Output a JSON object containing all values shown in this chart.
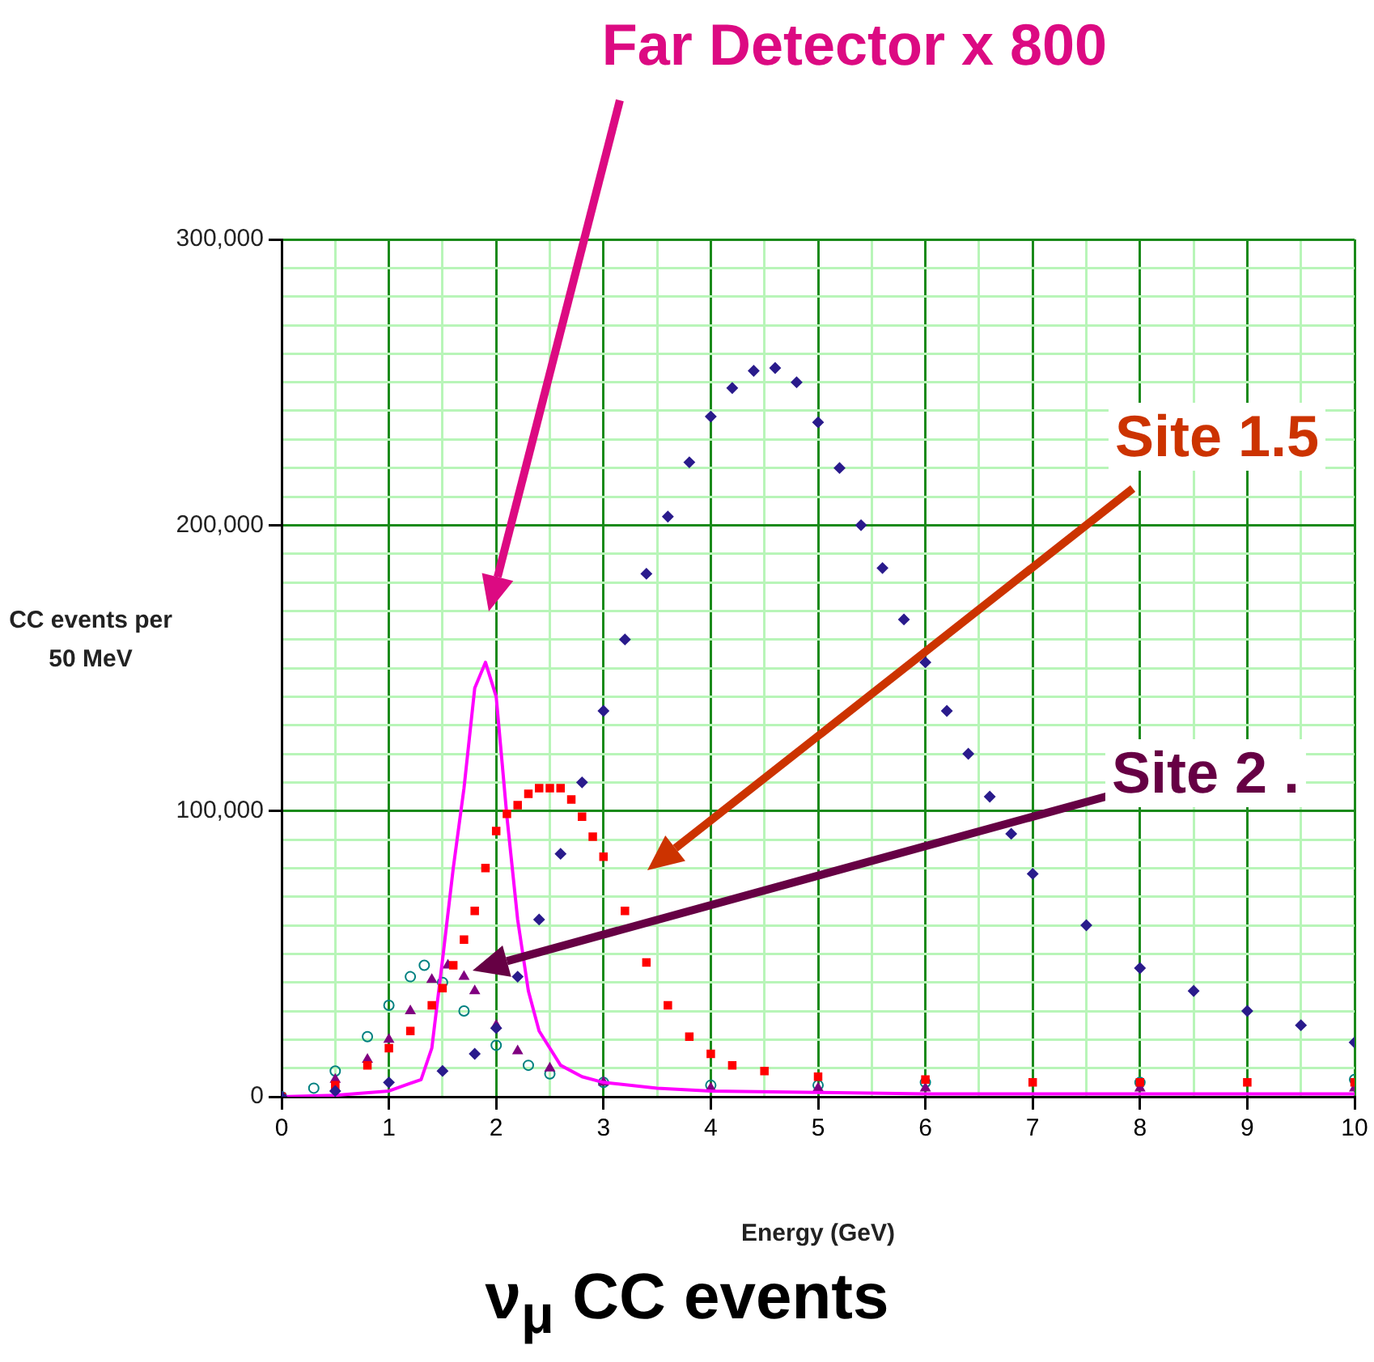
{
  "chart_data": {
    "type": "scatter",
    "title": "ν$_{μ}$ CC events",
    "xlabel": "Energy (GeV)",
    "ylabel": "CC events per 50 MeV",
    "xlim": [
      0,
      10
    ],
    "ylim": [
      0,
      300000
    ],
    "xticks": [
      0,
      {
        "value": 0.5,
        "label": null
      },
      1,
      {
        "value": 1.5,
        "label": null
      },
      2,
      {
        "value": 2.5,
        "label": null
      },
      3,
      {
        "value": 3.5,
        "label": null
      },
      4,
      {
        "value": 4.5,
        "label": null
      },
      5,
      {
        "value": 5.5,
        "label": null
      },
      6,
      {
        "value": 6.5,
        "label": null
      },
      7,
      {
        "value": 7.5,
        "label": null
      },
      8,
      {
        "value": 8.5,
        "label": null
      },
      9,
      {
        "value": 9.5,
        "label": null
      },
      10
    ],
    "yticks": [
      0,
      {
        "value": 10000,
        "label": null
      },
      {
        "value": 20000,
        "label": null
      },
      {
        "value": 30000,
        "label": null
      },
      {
        "value": 40000,
        "label": null
      },
      {
        "value": 50000,
        "label": null
      },
      {
        "value": 60000,
        "label": null
      },
      {
        "value": 70000,
        "label": null
      },
      {
        "value": 80000,
        "label": null
      },
      {
        "value": 90000,
        "label": null
      },
      {
        "value": 100000,
        "label": "100,000"
      },
      {
        "value": 110000,
        "label": null
      },
      {
        "value": 120000,
        "label": null
      },
      {
        "value": 130000,
        "label": null
      },
      {
        "value": 140000,
        "label": null
      },
      {
        "value": 150000,
        "label": null
      },
      {
        "value": 160000,
        "label": null
      },
      {
        "value": 170000,
        "label": null
      },
      {
        "value": 180000,
        "label": null
      },
      {
        "value": 190000,
        "label": null
      },
      {
        "value": 200000,
        "label": "200,000"
      },
      {
        "value": 210000,
        "label": null
      },
      {
        "value": 220000,
        "label": null
      },
      {
        "value": 230000,
        "label": null
      },
      {
        "value": 240000,
        "label": null
      },
      {
        "value": 250000,
        "label": null
      },
      {
        "value": 260000,
        "label": null
      },
      {
        "value": 270000,
        "label": null
      },
      {
        "value": 280000,
        "label": null
      },
      {
        "value": 290000,
        "label": null
      },
      {
        "value": 300000,
        "label": "300,000"
      }
    ],
    "grid": true,
    "series": [
      {
        "marker": "diamond",
        "color": "#2a1b8c",
        "x": [
          0,
          0.5,
          1,
          1.5,
          1.8,
          2,
          2.2,
          2.4,
          2.6,
          2.8,
          3,
          3.2,
          3.4,
          3.6,
          3.8,
          4,
          4.2,
          4.4,
          4.6,
          4.8,
          5,
          5.2,
          5.4,
          5.6,
          5.8,
          6,
          6.2,
          6.4,
          6.6,
          6.8,
          7,
          7.5,
          8,
          8.5,
          9,
          9.5,
          10
        ],
        "values": [
          0,
          2000,
          5000,
          9000,
          15000,
          24000,
          42000,
          62000,
          85000,
          110000,
          135000,
          160000,
          183000,
          203000,
          222000,
          238000,
          248000,
          254000,
          255000,
          250000,
          236000,
          220000,
          200000,
          185000,
          167000,
          152000,
          135000,
          120000,
          105000,
          92000,
          78000,
          60000,
          45000,
          37000,
          30000,
          25000,
          19000
        ]
      },
      {
        "marker": "square",
        "color": "#ff0000",
        "x": [
          0,
          0.5,
          0.8,
          1,
          1.2,
          1.4,
          1.5,
          1.6,
          1.7,
          1.8,
          1.9,
          2,
          2.1,
          2.2,
          2.3,
          2.4,
          2.5,
          2.6,
          2.7,
          2.8,
          2.9,
          3,
          3.2,
          3.4,
          3.6,
          3.8,
          4,
          4.2,
          4.5,
          5,
          6,
          7,
          8,
          9,
          10
        ],
        "values": [
          0,
          4000,
          11000,
          17000,
          23000,
          32000,
          38000,
          46000,
          55000,
          65000,
          80000,
          93000,
          99000,
          102000,
          106000,
          108000,
          108000,
          108000,
          104000,
          98000,
          91000,
          84000,
          65000,
          47000,
          32000,
          21000,
          15000,
          11000,
          9000,
          7000,
          6000,
          5000,
          5000,
          5000,
          5000
        ]
      },
      {
        "type": "line",
        "marker": "none",
        "color": "#ff00ff",
        "x": [
          0,
          0.5,
          1,
          1.3,
          1.4,
          1.5,
          1.6,
          1.7,
          1.8,
          1.9,
          2,
          2.1,
          2.2,
          2.3,
          2.4,
          2.6,
          2.8,
          3,
          3.5,
          4,
          5,
          6,
          8,
          10
        ],
        "values": [
          0,
          500,
          2000,
          6000,
          17000,
          48000,
          80000,
          108000,
          143000,
          152000,
          140000,
          98000,
          62000,
          37000,
          23000,
          11000,
          7000,
          5000,
          3000,
          2000,
          1500,
          1000,
          1000,
          1000
        ]
      },
      {
        "marker": "triangle",
        "color": "#800080",
        "x": [
          0.5,
          0.8,
          1,
          1.2,
          1.4,
          1.55,
          1.7,
          1.8,
          2,
          2.2,
          2.5,
          3,
          4,
          5,
          6,
          8,
          10
        ],
        "values": [
          6000,
          13000,
          20000,
          30000,
          41000,
          46000,
          42000,
          37000,
          25000,
          16000,
          10000,
          5000,
          3000,
          3000,
          3000,
          3000,
          3000
        ]
      },
      {
        "marker": "circle",
        "color": "#008080",
        "x": [
          0,
          0.3,
          0.5,
          0.8,
          1,
          1.2,
          1.33,
          1.5,
          1.7,
          2,
          2.3,
          2.5,
          3,
          4,
          5,
          6,
          8,
          10
        ],
        "values": [
          0,
          3000,
          9000,
          21000,
          32000,
          42000,
          46000,
          40000,
          30000,
          18000,
          11000,
          8000,
          5000,
          4000,
          4000,
          5000,
          5000,
          6000
        ]
      }
    ],
    "annotations": [
      "Far Detector x 800",
      "Site 1.5",
      "Site 2 ."
    ]
  }
}
